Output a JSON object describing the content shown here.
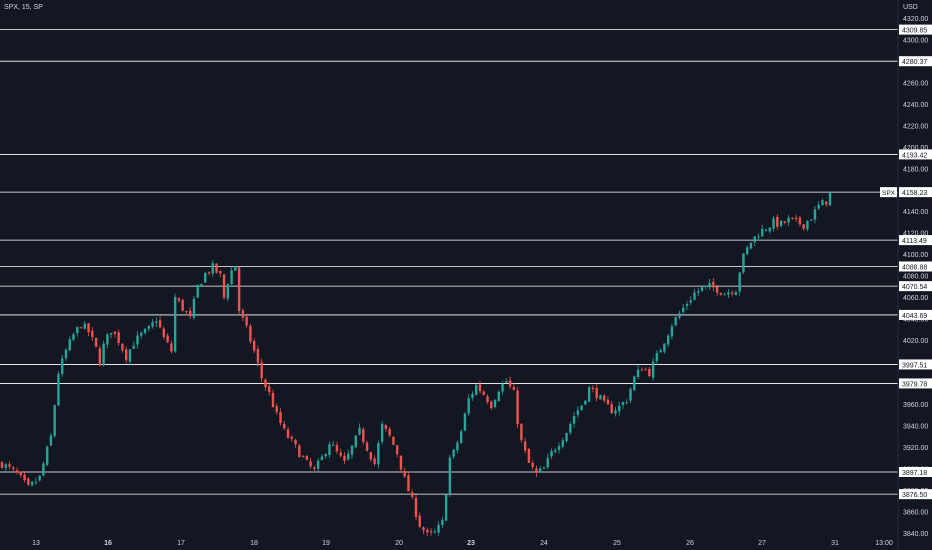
{
  "header": {
    "symbol_line": "SPX, 15, SP",
    "currency": "USD"
  },
  "colors": {
    "background": "#131722",
    "up": "#26a69a",
    "down": "#ef5350",
    "level_line": "#ffffff",
    "text": "#d1d4dc"
  },
  "chart_data": {
    "type": "candlestick",
    "symbol": "SPX",
    "interval": "15",
    "ylim": [
      3830,
      4330
    ],
    "y_ticks": [
      3840,
      3860,
      3880,
      3900,
      3920,
      3940,
      3960,
      3980,
      4000,
      4020,
      4040,
      4060,
      4080,
      4100,
      4120,
      4140,
      4160,
      4180,
      4200,
      4220,
      4240,
      4260,
      4280,
      4300,
      4320
    ],
    "y_tick_labels": [
      "3840.00",
      "3860.00",
      "3880.00",
      "3900.00",
      "3920.00",
      "3940.00",
      "3960.00",
      "3980.00",
      "4000.00",
      "4020.00",
      "4040.00",
      "4060.00",
      "4080.00",
      "4100.00",
      "4120.00",
      "4140.00",
      "4160.00",
      "4180.00",
      "4200.00",
      "4220.00",
      "4240.00",
      "4260.00",
      "4280.00",
      "4300.00",
      "4320.00"
    ],
    "x_tick_labels": [
      "13",
      "16",
      "17",
      "18",
      "19",
      "20",
      "23",
      "24",
      "25",
      "26",
      "27",
      "31",
      "13:00"
    ],
    "horizontal_levels": [
      4309.85,
      4280.37,
      4193.42,
      4113.49,
      4088.88,
      4070.54,
      4043.69,
      3997.51,
      3979.78,
      3897.18,
      3876.5
    ],
    "horizontal_level_labels": [
      "4309.85",
      "4280.37",
      "4193.42",
      "4113.49",
      "4088.88",
      "4070.54",
      "4043.69",
      "3997.51",
      "3979.78",
      "3897.18",
      "3876.50"
    ],
    "last_price": 4158.23,
    "last_price_label": "4158.23",
    "last_price_tag": "SPX",
    "price_path": [
      [
        0,
        3905
      ],
      [
        4,
        3895
      ],
      [
        7,
        3882
      ],
      [
        10,
        3892
      ],
      [
        13,
        3930
      ],
      [
        15,
        3990
      ],
      [
        17,
        4010
      ],
      [
        19,
        4025
      ],
      [
        21,
        4035
      ],
      [
        23,
        4028
      ],
      [
        25,
        4012
      ],
      [
        26,
        4000
      ],
      [
        27,
        4015
      ],
      [
        29,
        4030
      ],
      [
        31,
        4020
      ],
      [
        33,
        4005
      ],
      [
        35,
        4018
      ],
      [
        37,
        4025
      ],
      [
        39,
        4030
      ],
      [
        41,
        4040
      ],
      [
        43,
        4022
      ],
      [
        45,
        4010
      ],
      [
        46,
        4060
      ],
      [
        48,
        4050
      ],
      [
        50,
        4040
      ],
      [
        52,
        4070
      ],
      [
        54,
        4082
      ],
      [
        56,
        4088
      ],
      [
        58,
        4080
      ],
      [
        59,
        4060
      ],
      [
        60,
        4075
      ],
      [
        61,
        4085
      ],
      [
        62,
        4090
      ],
      [
        63,
        4048
      ],
      [
        65,
        4030
      ],
      [
        67,
        4010
      ],
      [
        69,
        3985
      ],
      [
        71,
        3970
      ],
      [
        73,
        3950
      ],
      [
        75,
        3935
      ],
      [
        77,
        3925
      ],
      [
        79,
        3915
      ],
      [
        81,
        3905
      ],
      [
        83,
        3898
      ],
      [
        85,
        3910
      ],
      [
        87,
        3925
      ],
      [
        89,
        3915
      ],
      [
        91,
        3905
      ],
      [
        93,
        3920
      ],
      [
        95,
        3935
      ],
      [
        97,
        3920
      ],
      [
        99,
        3905
      ],
      [
        101,
        3940
      ],
      [
        103,
        3930
      ],
      [
        105,
        3915
      ],
      [
        107,
        3890
      ],
      [
        109,
        3870
      ],
      [
        111,
        3848
      ],
      [
        113,
        3838
      ],
      [
        115,
        3840
      ],
      [
        117,
        3850
      ],
      [
        118,
        3880
      ],
      [
        119,
        3910
      ],
      [
        120,
        3915
      ],
      [
        122,
        3935
      ],
      [
        124,
        3965
      ],
      [
        126,
        3978
      ],
      [
        128,
        3970
      ],
      [
        130,
        3960
      ],
      [
        132,
        3975
      ],
      [
        134,
        3982
      ],
      [
        136,
        3970
      ],
      [
        137,
        3945
      ],
      [
        138,
        3925
      ],
      [
        140,
        3905
      ],
      [
        142,
        3895
      ],
      [
        144,
        3900
      ],
      [
        146,
        3915
      ],
      [
        148,
        3925
      ],
      [
        150,
        3935
      ],
      [
        152,
        3950
      ],
      [
        154,
        3960
      ],
      [
        156,
        3975
      ],
      [
        158,
        3970
      ],
      [
        160,
        3960
      ],
      [
        162,
        3955
      ],
      [
        164,
        3958
      ],
      [
        166,
        3965
      ],
      [
        168,
        3985
      ],
      [
        170,
        3995
      ],
      [
        172,
        3990
      ],
      [
        174,
        4005
      ],
      [
        176,
        4020
      ],
      [
        178,
        4035
      ],
      [
        180,
        4045
      ],
      [
        182,
        4055
      ],
      [
        184,
        4064
      ],
      [
        186,
        4068
      ],
      [
        188,
        4070
      ],
      [
        190,
        4068
      ],
      [
        192,
        4064
      ],
      [
        194,
        4067
      ],
      [
        195,
        4068
      ],
      [
        196,
        4085
      ],
      [
        197,
        4098
      ],
      [
        199,
        4112
      ],
      [
        201,
        4120
      ],
      [
        203,
        4125
      ],
      [
        205,
        4130
      ],
      [
        207,
        4128
      ],
      [
        209,
        4132
      ],
      [
        211,
        4130
      ],
      [
        213,
        4128
      ],
      [
        215,
        4135
      ],
      [
        217,
        4145
      ],
      [
        219,
        4150
      ],
      [
        220,
        4158
      ]
    ]
  }
}
